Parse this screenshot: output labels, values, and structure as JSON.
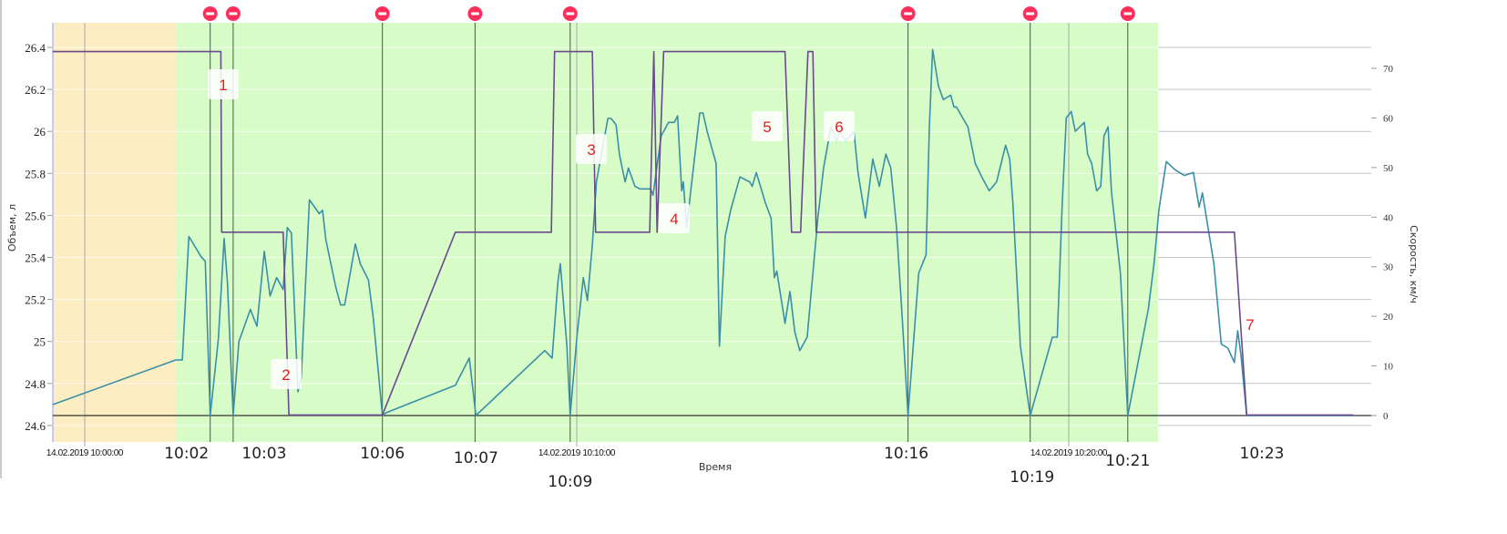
{
  "chart_data": {
    "type": "line",
    "title": "",
    "xlabel": "Время",
    "ylabel_left": "Объем, л",
    "ylabel_right": "Скорость, км/ч",
    "x_ticks": [
      "14.02.2019 10:00:00",
      "14.02.2019 10:10:00",
      "14.02.2019 10:20:00"
    ],
    "x_tick_times": [
      "10:00:00",
      "10:10:00",
      "10:20:00"
    ],
    "xlim": [
      "09:59:21",
      "10:26:09"
    ],
    "y_left_ticks": [
      "24.6",
      "24.8",
      "25",
      "25.2",
      "25.4",
      "25.6",
      "25.8",
      "26",
      "26.2",
      "26.4"
    ],
    "y_left_lim": [
      24.52,
      26.55
    ],
    "y_right_ticks": [
      "0",
      "10",
      "20",
      "30",
      "40",
      "50",
      "60",
      "70"
    ],
    "y_right_lim": [
      -5.3,
      79.2
    ],
    "grid": true,
    "regions": [
      {
        "from": "09:59:21",
        "to": "10:01:51",
        "color": "#fdedc3"
      },
      {
        "from": "10:01:51",
        "to": "10:21:49",
        "color": "#d8fcc8"
      }
    ],
    "series": [
      {
        "axis": "right",
        "color": "#3a8fa8",
        "points": [
          [
            "09:59:21",
            2.2
          ],
          [
            "10:01:51",
            11.2
          ],
          [
            "10:01:59",
            11.2
          ],
          [
            "10:02:07",
            36.1
          ],
          [
            "10:02:22",
            32.0
          ],
          [
            "10:02:27",
            31.1
          ],
          [
            "10:02:33",
            0
          ],
          [
            "10:02:43",
            15.5
          ],
          [
            "10:02:50",
            35.7
          ],
          [
            "10:02:54",
            26.9
          ],
          [
            "10:03:01",
            0
          ],
          [
            "10:03:08",
            14.9
          ],
          [
            "10:03:22",
            21.4
          ],
          [
            "10:03:30",
            18.0
          ],
          [
            "10:03:39",
            33.1
          ],
          [
            "10:03:46",
            24.1
          ],
          [
            "10:03:54",
            27.8
          ],
          [
            "10:04:02",
            25.4
          ],
          [
            "10:04:07",
            37.9
          ],
          [
            "10:04:12",
            36.8
          ],
          [
            "10:04:20",
            4.8
          ],
          [
            "10:04:24",
            7.6
          ],
          [
            "10:04:34",
            43.5
          ],
          [
            "10:04:46",
            40.7
          ],
          [
            "10:04:50",
            41.4
          ],
          [
            "10:04:54",
            35.5
          ],
          [
            "10:05:06",
            26.0
          ],
          [
            "10:05:12",
            22.3
          ],
          [
            "10:05:17",
            22.3
          ],
          [
            "10:05:30",
            34.6
          ],
          [
            "10:05:36",
            30.6
          ],
          [
            "10:05:46",
            27.3
          ],
          [
            "10:05:52",
            19.5
          ],
          [
            "10:06:03",
            0
          ],
          [
            "10:06:08",
            0.6
          ],
          [
            "10:07:32",
            6.1
          ],
          [
            "10:07:49",
            11.6
          ],
          [
            "10:07:57",
            0
          ],
          [
            "10:09:21",
            13.1
          ],
          [
            "10:09:30",
            11.6
          ],
          [
            "10:09:37",
            26.9
          ],
          [
            "10:09:40",
            30.6
          ],
          [
            "10:09:48",
            14.0
          ],
          [
            "10:09:52",
            0
          ],
          [
            "10:10:00",
            15.5
          ],
          [
            "10:10:08",
            27.8
          ],
          [
            "10:10:13",
            23.2
          ],
          [
            "10:10:19",
            34.3
          ],
          [
            "10:10:24",
            47.1
          ],
          [
            "10:10:32",
            54.5
          ],
          [
            "10:10:38",
            59.9
          ],
          [
            "10:10:42",
            59.9
          ],
          [
            "10:10:48",
            58.6
          ],
          [
            "10:10:52",
            52.7
          ],
          [
            "10:10:59",
            47.1
          ],
          [
            "10:11:03",
            49.9
          ],
          [
            "10:11:11",
            46.2
          ],
          [
            "10:11:17",
            45.7
          ],
          [
            "10:11:30",
            45.7
          ],
          [
            "10:11:33",
            44.4
          ],
          [
            "10:11:43",
            56.4
          ],
          [
            "10:11:52",
            59.1
          ],
          [
            "10:11:59",
            59.1
          ],
          [
            "10:12:03",
            60.4
          ],
          [
            "10:12:08",
            45.3
          ],
          [
            "10:12:10",
            47.1
          ],
          [
            "10:12:14",
            37.9
          ],
          [
            "10:12:21",
            48.1
          ],
          [
            "10:12:30",
            61.0
          ],
          [
            "10:12:34",
            61.0
          ],
          [
            "10:12:39",
            57.3
          ],
          [
            "10:12:50",
            50.8
          ],
          [
            "10:12:54",
            14.0
          ],
          [
            "10:13:01",
            36.1
          ],
          [
            "10:13:08",
            41.6
          ],
          [
            "10:13:19",
            48.1
          ],
          [
            "10:13:31",
            47.1
          ],
          [
            "10:13:34",
            46.2
          ],
          [
            "10:13:39",
            49.0
          ],
          [
            "10:13:50",
            42.9
          ],
          [
            "10:13:57",
            39.8
          ],
          [
            "10:14:01",
            27.8
          ],
          [
            "10:14:04",
            29.1
          ],
          [
            "10:14:14",
            18.6
          ],
          [
            "10:14:20",
            25.0
          ],
          [
            "10:14:26",
            16.8
          ],
          [
            "10:14:32",
            13.1
          ],
          [
            "10:14:41",
            15.8
          ],
          [
            "10:14:54",
            39.8
          ],
          [
            "10:15:01",
            49.9
          ],
          [
            "10:15:10",
            58.2
          ],
          [
            "10:15:17",
            55.4
          ],
          [
            "10:15:21",
            57.3
          ],
          [
            "10:15:28",
            55.4
          ],
          [
            "10:15:38",
            57.3
          ],
          [
            "10:15:43",
            49.0
          ],
          [
            "10:15:52",
            39.8
          ],
          [
            "10:16:01",
            51.7
          ],
          [
            "10:16:09",
            46.2
          ],
          [
            "10:16:17",
            52.7
          ],
          [
            "10:16:23",
            49.9
          ],
          [
            "10:16:30",
            37.9
          ],
          [
            "10:16:37",
            19.5
          ],
          [
            "10:16:44",
            0
          ],
          [
            "10:16:57",
            28.7
          ],
          [
            "10:17:06",
            32.4
          ],
          [
            "10:17:10",
            58.2
          ],
          [
            "10:17:14",
            73.8
          ],
          [
            "10:17:21",
            66.5
          ],
          [
            "10:17:27",
            63.7
          ],
          [
            "10:17:36",
            64.6
          ],
          [
            "10:17:40",
            62.2
          ],
          [
            "10:17:43",
            62.2
          ],
          [
            "10:17:57",
            58.2
          ],
          [
            "10:18:06",
            50.8
          ],
          [
            "10:18:14",
            48.1
          ],
          [
            "10:18:23",
            45.3
          ],
          [
            "10:18:32",
            47.1
          ],
          [
            "10:18:43",
            54.5
          ],
          [
            "10:18:48",
            51.7
          ],
          [
            "10:18:52",
            42.5
          ],
          [
            "10:19:01",
            14.0
          ],
          [
            "10:19:13",
            0
          ],
          [
            "10:19:40",
            15.8
          ],
          [
            "10:19:46",
            15.8
          ],
          [
            "10:19:52",
            42.5
          ],
          [
            "10:19:57",
            60.0
          ],
          [
            "10:20:03",
            61.3
          ],
          [
            "10:20:08",
            57.3
          ],
          [
            "10:20:19",
            59.1
          ],
          [
            "10:20:23",
            52.7
          ],
          [
            "10:20:28",
            50.8
          ],
          [
            "10:20:34",
            45.3
          ],
          [
            "10:20:39",
            46.2
          ],
          [
            "10:20:43",
            56.4
          ],
          [
            "10:20:48",
            58.2
          ],
          [
            "10:20:52",
            45.3
          ],
          [
            "10:21:03",
            28.7
          ],
          [
            "10:21:12",
            0
          ],
          [
            "10:21:37",
            21.4
          ],
          [
            "10:21:44",
            30.6
          ],
          [
            "10:21:50",
            41.6
          ],
          [
            "10:21:59",
            51.2
          ],
          [
            "10:22:10",
            49.5
          ],
          [
            "10:22:21",
            48.4
          ],
          [
            "10:22:32",
            49.0
          ],
          [
            "10:22:39",
            42.0
          ],
          [
            "10:22:43",
            44.9
          ],
          [
            "10:22:57",
            30.6
          ],
          [
            "10:23:06",
            14.4
          ],
          [
            "10:23:14",
            13.6
          ],
          [
            "10:23:22",
            10.7
          ],
          [
            "10:23:26",
            17.1
          ],
          [
            "10:23:30",
            12.2
          ],
          [
            "10:23:37",
            0
          ],
          [
            "10:25:47",
            0
          ]
        ]
      },
      {
        "axis": "left",
        "color": "#6a4a8c",
        "points": [
          [
            "09:59:21",
            26.38
          ],
          [
            "10:02:46",
            26.38
          ],
          [
            "10:02:47",
            25.52
          ],
          [
            "10:04:02",
            25.52
          ],
          [
            "10:04:09",
            24.65
          ],
          [
            "10:06:03",
            24.65
          ],
          [
            "10:07:32",
            25.52
          ],
          [
            "10:09:29",
            25.52
          ],
          [
            "10:09:33",
            26.38
          ],
          [
            "10:10:19",
            26.38
          ],
          [
            "10:10:23",
            25.52
          ],
          [
            "10:11:29",
            25.52
          ],
          [
            "10:11:34",
            26.38
          ],
          [
            "10:11:38",
            25.52
          ],
          [
            "10:11:46",
            26.38
          ],
          [
            "10:14:14",
            26.38
          ],
          [
            "10:14:22",
            25.52
          ],
          [
            "10:14:33",
            25.52
          ],
          [
            "10:14:42",
            26.38
          ],
          [
            "10:14:48",
            26.38
          ],
          [
            "10:14:52",
            25.52
          ],
          [
            "10:23:22",
            25.52
          ],
          [
            "10:23:37",
            24.65
          ],
          [
            "10:25:47",
            24.65
          ]
        ]
      }
    ],
    "stops": [
      {
        "time": "10:02:33",
        "label": "10:02",
        "marker": true
      },
      {
        "time": "10:03:01",
        "label": "10:03",
        "marker": true
      },
      {
        "time": "10:06:03",
        "label": "10:06",
        "marker": true
      },
      {
        "time": "10:07:56",
        "label": "10:07",
        "marker": true
      },
      {
        "time": "10:09:52",
        "label": "10:09",
        "marker": true
      },
      {
        "time": "10:16:44",
        "label": "10:16",
        "marker": true
      },
      {
        "time": "10:19:13",
        "label": "10:19",
        "marker": true
      },
      {
        "time": "10:21:12",
        "label": "10:21",
        "marker": true
      },
      {
        "time": "10:23:22",
        "label": "10:23",
        "marker": false
      }
    ],
    "annotations": [
      {
        "label": "1",
        "boxed": true
      },
      {
        "label": "2",
        "boxed": true
      },
      {
        "label": "3",
        "boxed": true
      },
      {
        "label": "4",
        "boxed": true
      },
      {
        "label": "5",
        "boxed": true
      },
      {
        "label": "6",
        "boxed": true
      },
      {
        "label": "7",
        "boxed": false
      }
    ],
    "colors": {
      "stop_marker": "#ff2d5a",
      "annotation_text": "#e02020",
      "plot_bg_white": "#ffffff"
    }
  }
}
